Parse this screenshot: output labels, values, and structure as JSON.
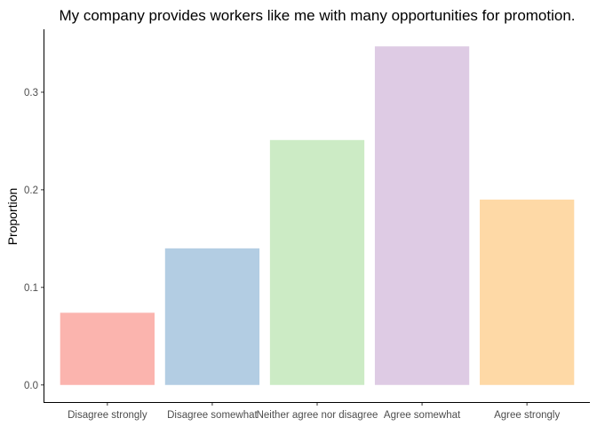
{
  "chart_data": {
    "type": "bar",
    "title": "My company provides workers like me with many opportunities for promotion.",
    "xlabel": "",
    "ylabel": "Proportion",
    "categories": [
      "Disagree strongly",
      "Disagree somewhat",
      "Neither agree nor disagree",
      "Agree somewhat",
      "Agree strongly"
    ],
    "values": [
      0.074,
      0.14,
      0.251,
      0.347,
      0.19
    ],
    "colors": [
      "#FBB4AE",
      "#B3CDE3",
      "#CCEBC5",
      "#DECBE4",
      "#FED9A6"
    ],
    "yticks": [
      0.0,
      0.1,
      0.2,
      0.3
    ],
    "ytick_labels": [
      "0.0",
      "0.1",
      "0.2",
      "0.3"
    ],
    "ylim": [
      -0.0175,
      0.3645
    ],
    "grid": false,
    "legend": "none"
  }
}
